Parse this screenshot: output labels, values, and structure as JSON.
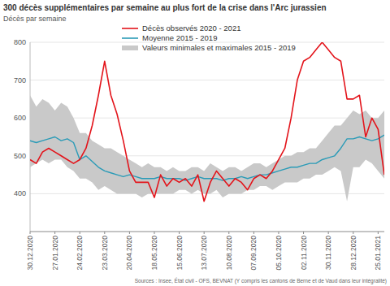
{
  "chart_data": {
    "type": "line",
    "title": "300 décès supplémentaires par semaine au plus fort de la crise dans l'Arc jurassien",
    "y_label": "Décès par semaine",
    "source": "Sources : Insee, État civil - OFS, BEVNAT (Y compris les cantons de Berne et de Vaud dans leur intégralité)",
    "categories": [
      "30.12.2020",
      null,
      null,
      null,
      "27.01.2020",
      null,
      null,
      null,
      "24.02.2020",
      null,
      null,
      null,
      "23.03.2020",
      null,
      null,
      null,
      "20.04.2020",
      null,
      null,
      null,
      "18.05.2020",
      null,
      null,
      null,
      "15.06.2020",
      null,
      null,
      null,
      "13.07.2020",
      null,
      null,
      null,
      "10.08.2020",
      null,
      null,
      null,
      "07.09.2020",
      null,
      null,
      null,
      "05.10.2020",
      null,
      null,
      null,
      "02.11.2020",
      null,
      null,
      null,
      "30.11.2020",
      null,
      null,
      null,
      "28.12.2020",
      null,
      null,
      null,
      "25.01.2021",
      null
    ],
    "ylim": [
      300,
      800
    ],
    "yticks": [
      400,
      500,
      600,
      700,
      800
    ],
    "grid": true,
    "legend": "top",
    "series": [
      {
        "name": "Décès observés 2020 - 2021",
        "color": "#e3141b",
        "type": "line",
        "values": [
          490,
          480,
          510,
          520,
          510,
          500,
          490,
          480,
          490,
          520,
          580,
          660,
          750,
          660,
          610,
          540,
          460,
          430,
          430,
          430,
          390,
          450,
          420,
          440,
          430,
          440,
          420,
          450,
          380,
          430,
          460,
          440,
          420,
          440,
          430,
          410,
          440,
          450,
          440,
          460,
          490,
          520,
          600,
          700,
          750,
          760,
          780,
          800,
          780,
          760,
          750,
          650,
          650,
          660,
          550,
          600,
          570,
          450
        ]
      },
      {
        "name": "Moyenne 2015 - 2019",
        "color": "#2a9bb7",
        "type": "line",
        "values": [
          540,
          535,
          540,
          545,
          550,
          540,
          545,
          535,
          490,
          500,
          485,
          470,
          460,
          455,
          450,
          445,
          450,
          445,
          440,
          440,
          440,
          445,
          440,
          440,
          440,
          435,
          440,
          445,
          440,
          440,
          440,
          435,
          440,
          440,
          445,
          440,
          445,
          450,
          450,
          455,
          460,
          465,
          470,
          470,
          475,
          480,
          480,
          490,
          495,
          500,
          520,
          545,
          545,
          550,
          545,
          540,
          545,
          555
        ]
      },
      {
        "name": "Valeurs minimales et maximales 2015 - 2019",
        "color": "#c9c9c9",
        "type": "band",
        "values": [
          660,
          630,
          650,
          640,
          620,
          640,
          630,
          600,
          560,
          560,
          540,
          530,
          520,
          520,
          510,
          500,
          490,
          480,
          470,
          480,
          470,
          470,
          460,
          470,
          460,
          460,
          470,
          470,
          460,
          480,
          470,
          460,
          470,
          470,
          460,
          470,
          480,
          480,
          470,
          480,
          490,
          500,
          500,
          510,
          510,
          520,
          520,
          540,
          560,
          580,
          580,
          600,
          620,
          610,
          620,
          600,
          600,
          620
        ],
        "lower": [
          470,
          480,
          490,
          480,
          490,
          490,
          470,
          460,
          440,
          440,
          430,
          410,
          420,
          410,
          400,
          400,
          400,
          400,
          390,
          400,
          400,
          400,
          400,
          400,
          410,
          410,
          400,
          410,
          400,
          400,
          410,
          390,
          400,
          400,
          400,
          410,
          410,
          420,
          420,
          410,
          420,
          430,
          430,
          430,
          440,
          440,
          450,
          450,
          460,
          470,
          460,
          380,
          470,
          470,
          490,
          480,
          460,
          440
        ]
      }
    ]
  }
}
